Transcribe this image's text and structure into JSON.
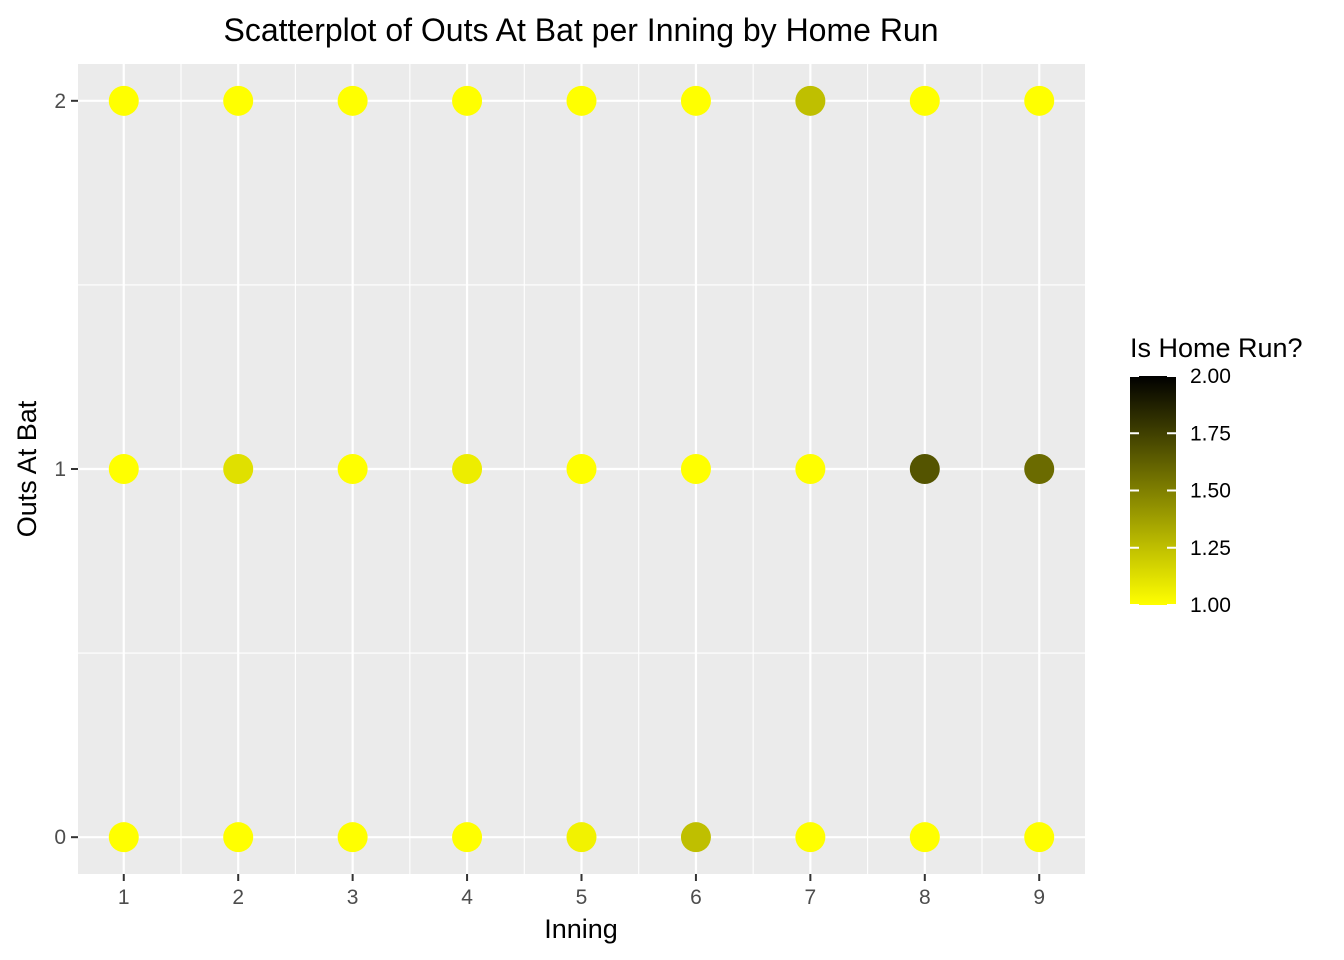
{
  "chart_data": {
    "type": "scatter",
    "title": "Scatterplot of Outs At Bat per Inning by Home Run",
    "xlabel": "Inning",
    "ylabel": "Outs At Bat",
    "xlim": [
      0.6,
      9.4
    ],
    "ylim": [
      -0.1,
      2.1
    ],
    "x_ticks": [
      1,
      2,
      3,
      4,
      5,
      6,
      7,
      8,
      9
    ],
    "y_ticks": [
      0,
      1,
      2
    ],
    "grid": true,
    "legend": {
      "title": "Is Home Run?",
      "placement": "right",
      "range": [
        1.0,
        2.0
      ],
      "ticks": [
        "1.00",
        "1.25",
        "1.50",
        "1.75",
        "2.00"
      ],
      "color_low": "#ffff00",
      "color_high": "#000000"
    },
    "colors": {
      "panel_background": "#ebebeb",
      "gridline": "#ffffff",
      "tick_text": "#4d4d4d"
    },
    "points": [
      {
        "x": 1,
        "y": 0,
        "value": 1.0
      },
      {
        "x": 1,
        "y": 1,
        "value": 1.0
      },
      {
        "x": 1,
        "y": 2,
        "value": 1.0
      },
      {
        "x": 2,
        "y": 0,
        "value": 1.0
      },
      {
        "x": 2,
        "y": 1,
        "value": 1.12
      },
      {
        "x": 2,
        "y": 2,
        "value": 1.0
      },
      {
        "x": 3,
        "y": 0,
        "value": 1.0
      },
      {
        "x": 3,
        "y": 1,
        "value": 1.0
      },
      {
        "x": 3,
        "y": 2,
        "value": 1.0
      },
      {
        "x": 4,
        "y": 0,
        "value": 1.0
      },
      {
        "x": 4,
        "y": 1,
        "value": 1.07
      },
      {
        "x": 4,
        "y": 2,
        "value": 1.0
      },
      {
        "x": 5,
        "y": 0,
        "value": 1.05
      },
      {
        "x": 5,
        "y": 1,
        "value": 1.0
      },
      {
        "x": 5,
        "y": 2,
        "value": 1.0
      },
      {
        "x": 6,
        "y": 0,
        "value": 1.25
      },
      {
        "x": 6,
        "y": 1,
        "value": 1.0
      },
      {
        "x": 6,
        "y": 2,
        "value": 1.0
      },
      {
        "x": 7,
        "y": 0,
        "value": 1.0
      },
      {
        "x": 7,
        "y": 1,
        "value": 1.0
      },
      {
        "x": 7,
        "y": 2,
        "value": 1.25
      },
      {
        "x": 8,
        "y": 0,
        "value": 1.0
      },
      {
        "x": 8,
        "y": 1,
        "value": 1.67
      },
      {
        "x": 8,
        "y": 2,
        "value": 1.0
      },
      {
        "x": 9,
        "y": 0,
        "value": 1.0
      },
      {
        "x": 9,
        "y": 1,
        "value": 1.58
      },
      {
        "x": 9,
        "y": 2,
        "value": 1.0
      }
    ]
  }
}
